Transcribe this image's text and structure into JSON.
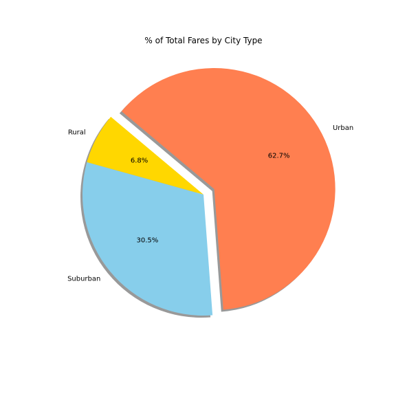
{
  "chart_data": {
    "type": "pie",
    "title": "% of Total Fares by City Type",
    "slices": [
      {
        "label": "Rural",
        "value": 6.8,
        "pct_label": "6.8%",
        "color": "#ffd700",
        "explode": false
      },
      {
        "label": "Suburban",
        "value": 30.5,
        "pct_label": "30.5%",
        "color": "#87ceeb",
        "explode": false
      },
      {
        "label": "Urban",
        "value": 62.7,
        "pct_label": "62.7%",
        "color": "#ff7f50",
        "explode": true
      }
    ],
    "start_angle_deg": 140,
    "shadow": true,
    "legend": "none"
  }
}
